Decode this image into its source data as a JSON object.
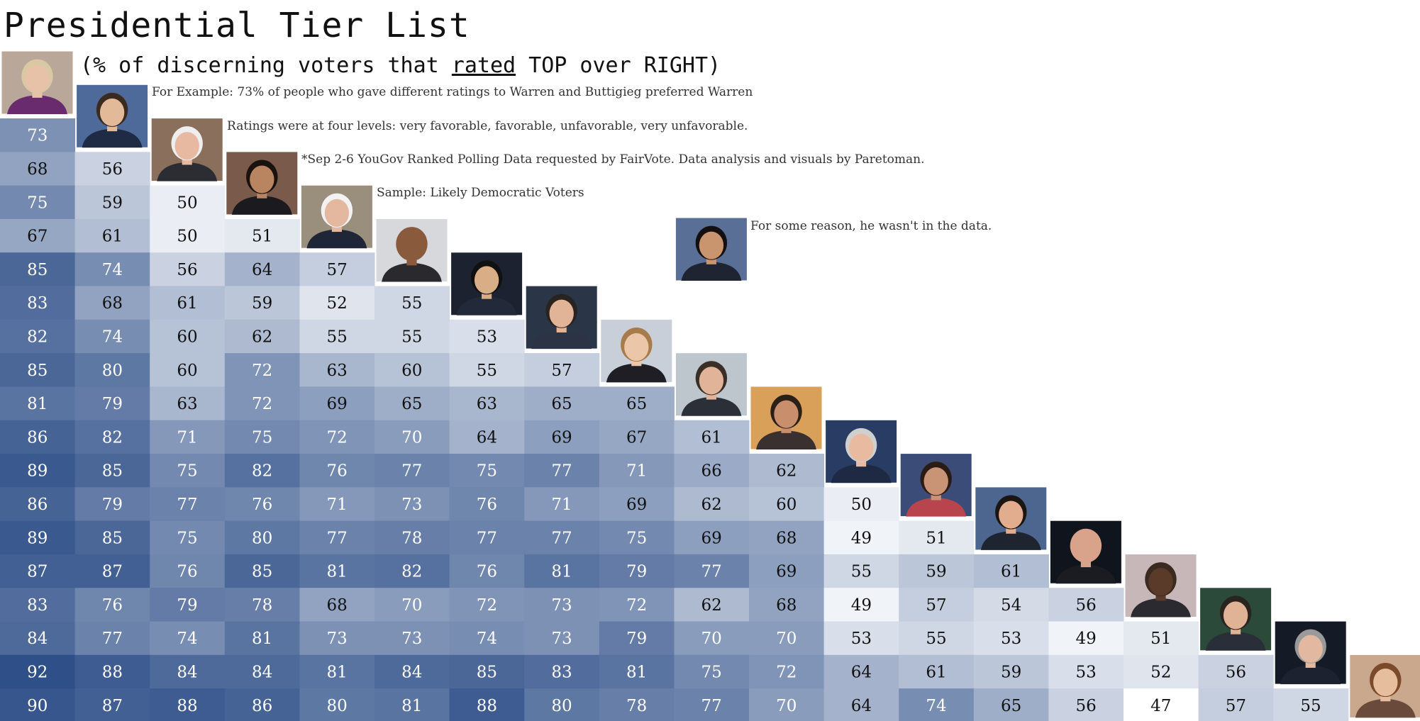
{
  "title": "Presidential Tier List",
  "subtitle": {
    "pre": "(% of discerning voters that ",
    "underlined": "rated",
    "post": " TOP over RIGHT)"
  },
  "notes": {
    "example": "For Example: 73% of people who gave different ratings to Warren and Buttigieg preferred Warren",
    "levels": "Ratings were at four levels: very favorable, favorable, unfavorable, very unfavorable.",
    "source": "*Sep 2-6 YouGov Ranked Polling Data requested by FairVote. Data analysis and visuals by Paretoman.",
    "sample": "Sample: Likely Democratic Voters",
    "missing": "For some reason, he wasn't in the data."
  },
  "colors": {
    "low": "#ffffff",
    "high": "#2e4f88",
    "text_dark": "#111111",
    "text_light": "#ffffff"
  },
  "chart_data": {
    "type": "heatmap",
    "color_scale": [
      47,
      92
    ],
    "rows": [
      [
        73
      ],
      [
        68,
        56
      ],
      [
        75,
        59,
        50
      ],
      [
        67,
        61,
        50,
        51
      ],
      [
        85,
        74,
        56,
        64,
        57
      ],
      [
        83,
        68,
        61,
        59,
        52,
        55
      ],
      [
        82,
        74,
        60,
        62,
        55,
        55,
        53
      ],
      [
        85,
        80,
        60,
        72,
        63,
        60,
        55,
        57
      ],
      [
        81,
        79,
        63,
        72,
        69,
        65,
        63,
        65,
        65
      ],
      [
        86,
        82,
        71,
        75,
        72,
        70,
        64,
        69,
        67,
        61
      ],
      [
        89,
        85,
        75,
        82,
        76,
        77,
        75,
        77,
        71,
        66,
        62
      ],
      [
        86,
        79,
        77,
        76,
        71,
        73,
        76,
        71,
        69,
        62,
        60,
        50
      ],
      [
        89,
        85,
        75,
        80,
        77,
        78,
        77,
        77,
        75,
        69,
        68,
        49,
        51
      ],
      [
        87,
        87,
        76,
        85,
        81,
        82,
        76,
        81,
        79,
        77,
        69,
        55,
        59,
        61
      ],
      [
        83,
        76,
        79,
        78,
        68,
        70,
        72,
        73,
        72,
        62,
        68,
        49,
        57,
        54,
        56
      ],
      [
        84,
        77,
        74,
        81,
        73,
        73,
        74,
        73,
        79,
        70,
        70,
        53,
        55,
        53,
        49,
        51
      ],
      [
        92,
        88,
        84,
        84,
        81,
        84,
        85,
        83,
        81,
        75,
        72,
        64,
        61,
        59,
        53,
        52,
        56
      ],
      [
        90,
        87,
        88,
        86,
        80,
        81,
        88,
        80,
        78,
        77,
        70,
        64,
        74,
        65,
        56,
        47,
        57,
        55
      ]
    ],
    "portraits": [
      {
        "icon": "portrait-warren-icon",
        "bg": "#b9a89a",
        "suit": "#6a2b6e",
        "skin": "#e8c2a8",
        "hair": "#d8c9a4"
      },
      {
        "icon": "portrait-buttigieg-icon",
        "bg": "#4d6a9a",
        "suit": "#1f2a44",
        "skin": "#e2b999",
        "hair": "#3b2a20"
      },
      {
        "icon": "portrait-sanders-icon",
        "bg": "#8a6f5c",
        "suit": "#2b2d33",
        "skin": "#e7b9a0",
        "hair": "#eeeeee"
      },
      {
        "icon": "portrait-harris-icon",
        "bg": "#7a5a4a",
        "suit": "#1b1b1f",
        "skin": "#b88560",
        "hair": "#1a120e"
      },
      {
        "icon": "portrait-biden-icon",
        "bg": "#9a8f7c",
        "suit": "#1e2638",
        "skin": "#e3b89e",
        "hair": "#f2f2f2"
      },
      {
        "icon": "portrait-booker-icon",
        "bg": "#d6d8dc",
        "suit": "#2a2a2e",
        "skin": "#8a5a3c",
        "hair": "#8a5a3c"
      },
      {
        "icon": "portrait-yang-icon",
        "bg": "#1c2230",
        "suit": "#222a3a",
        "skin": "#d9ae86",
        "hair": "#111111"
      },
      {
        "icon": "portrait-orourke-icon",
        "bg": "#2a3548",
        "suit": "#2c3344",
        "skin": "#e2b497",
        "hair": "#2a2420"
      },
      {
        "icon": "portrait-klobuchar-icon",
        "bg": "#c9cfd8",
        "suit": "#1e1e24",
        "skin": "#ecc6a8",
        "hair": "#a77c4a"
      },
      {
        "icon": "portrait-bennet-icon",
        "bg": "#bcc6cc",
        "suit": "#2b3038",
        "skin": "#e1b49a",
        "hair": "#3a2e26"
      },
      {
        "icon": "portrait-bullock-icon",
        "bg": "#d9a05a",
        "suit": "#3a3030",
        "skin": "#c98f6c",
        "hair": "#2a2018"
      },
      {
        "icon": "portrait-steyer-icon",
        "bg": "#283c64",
        "suit": "#1e2a44",
        "skin": "#e8bba0",
        "hair": "#cfcfcf"
      },
      {
        "icon": "portrait-gabbard-icon",
        "bg": "#3b4c78",
        "suit": "#b8444e",
        "skin": "#c99476",
        "hair": "#2a1c14"
      },
      {
        "icon": "portrait-ryan-icon",
        "bg": "#4c6690",
        "suit": "#1e2430",
        "skin": "#e2ad8e",
        "hair": "#1c1612"
      },
      {
        "icon": "portrait-delaney-icon",
        "bg": "#10141c",
        "suit": "#1a1c22",
        "skin": "#d9a28a",
        "hair": "#d9a28a"
      },
      {
        "icon": "portrait-messam-icon",
        "bg": "#c8b7b8",
        "suit": "#2a2a30",
        "skin": "#5a3a28",
        "hair": "#3a2a20"
      },
      {
        "icon": "portrait-sestak-icon",
        "bg": "#2c4a3a",
        "suit": "#2a2e38",
        "skin": "#e0b296",
        "hair": "#2a241e"
      },
      {
        "icon": "portrait-deblasio-icon",
        "bg": "#141a26",
        "suit": "#1d2230",
        "skin": "#e2b8a0",
        "hair": "#9a9a9a"
      },
      {
        "icon": "portrait-williamson-icon",
        "bg": "#c9a88e",
        "suit": "#6a4a3a",
        "skin": "#e6be9e",
        "hair": "#7a4a2a"
      }
    ],
    "extra_portrait": {
      "icon": "portrait-castro-icon",
      "bg": "#5a6f96",
      "suit": "#1e2432",
      "skin": "#c9956e",
      "hair": "#141010"
    }
  }
}
